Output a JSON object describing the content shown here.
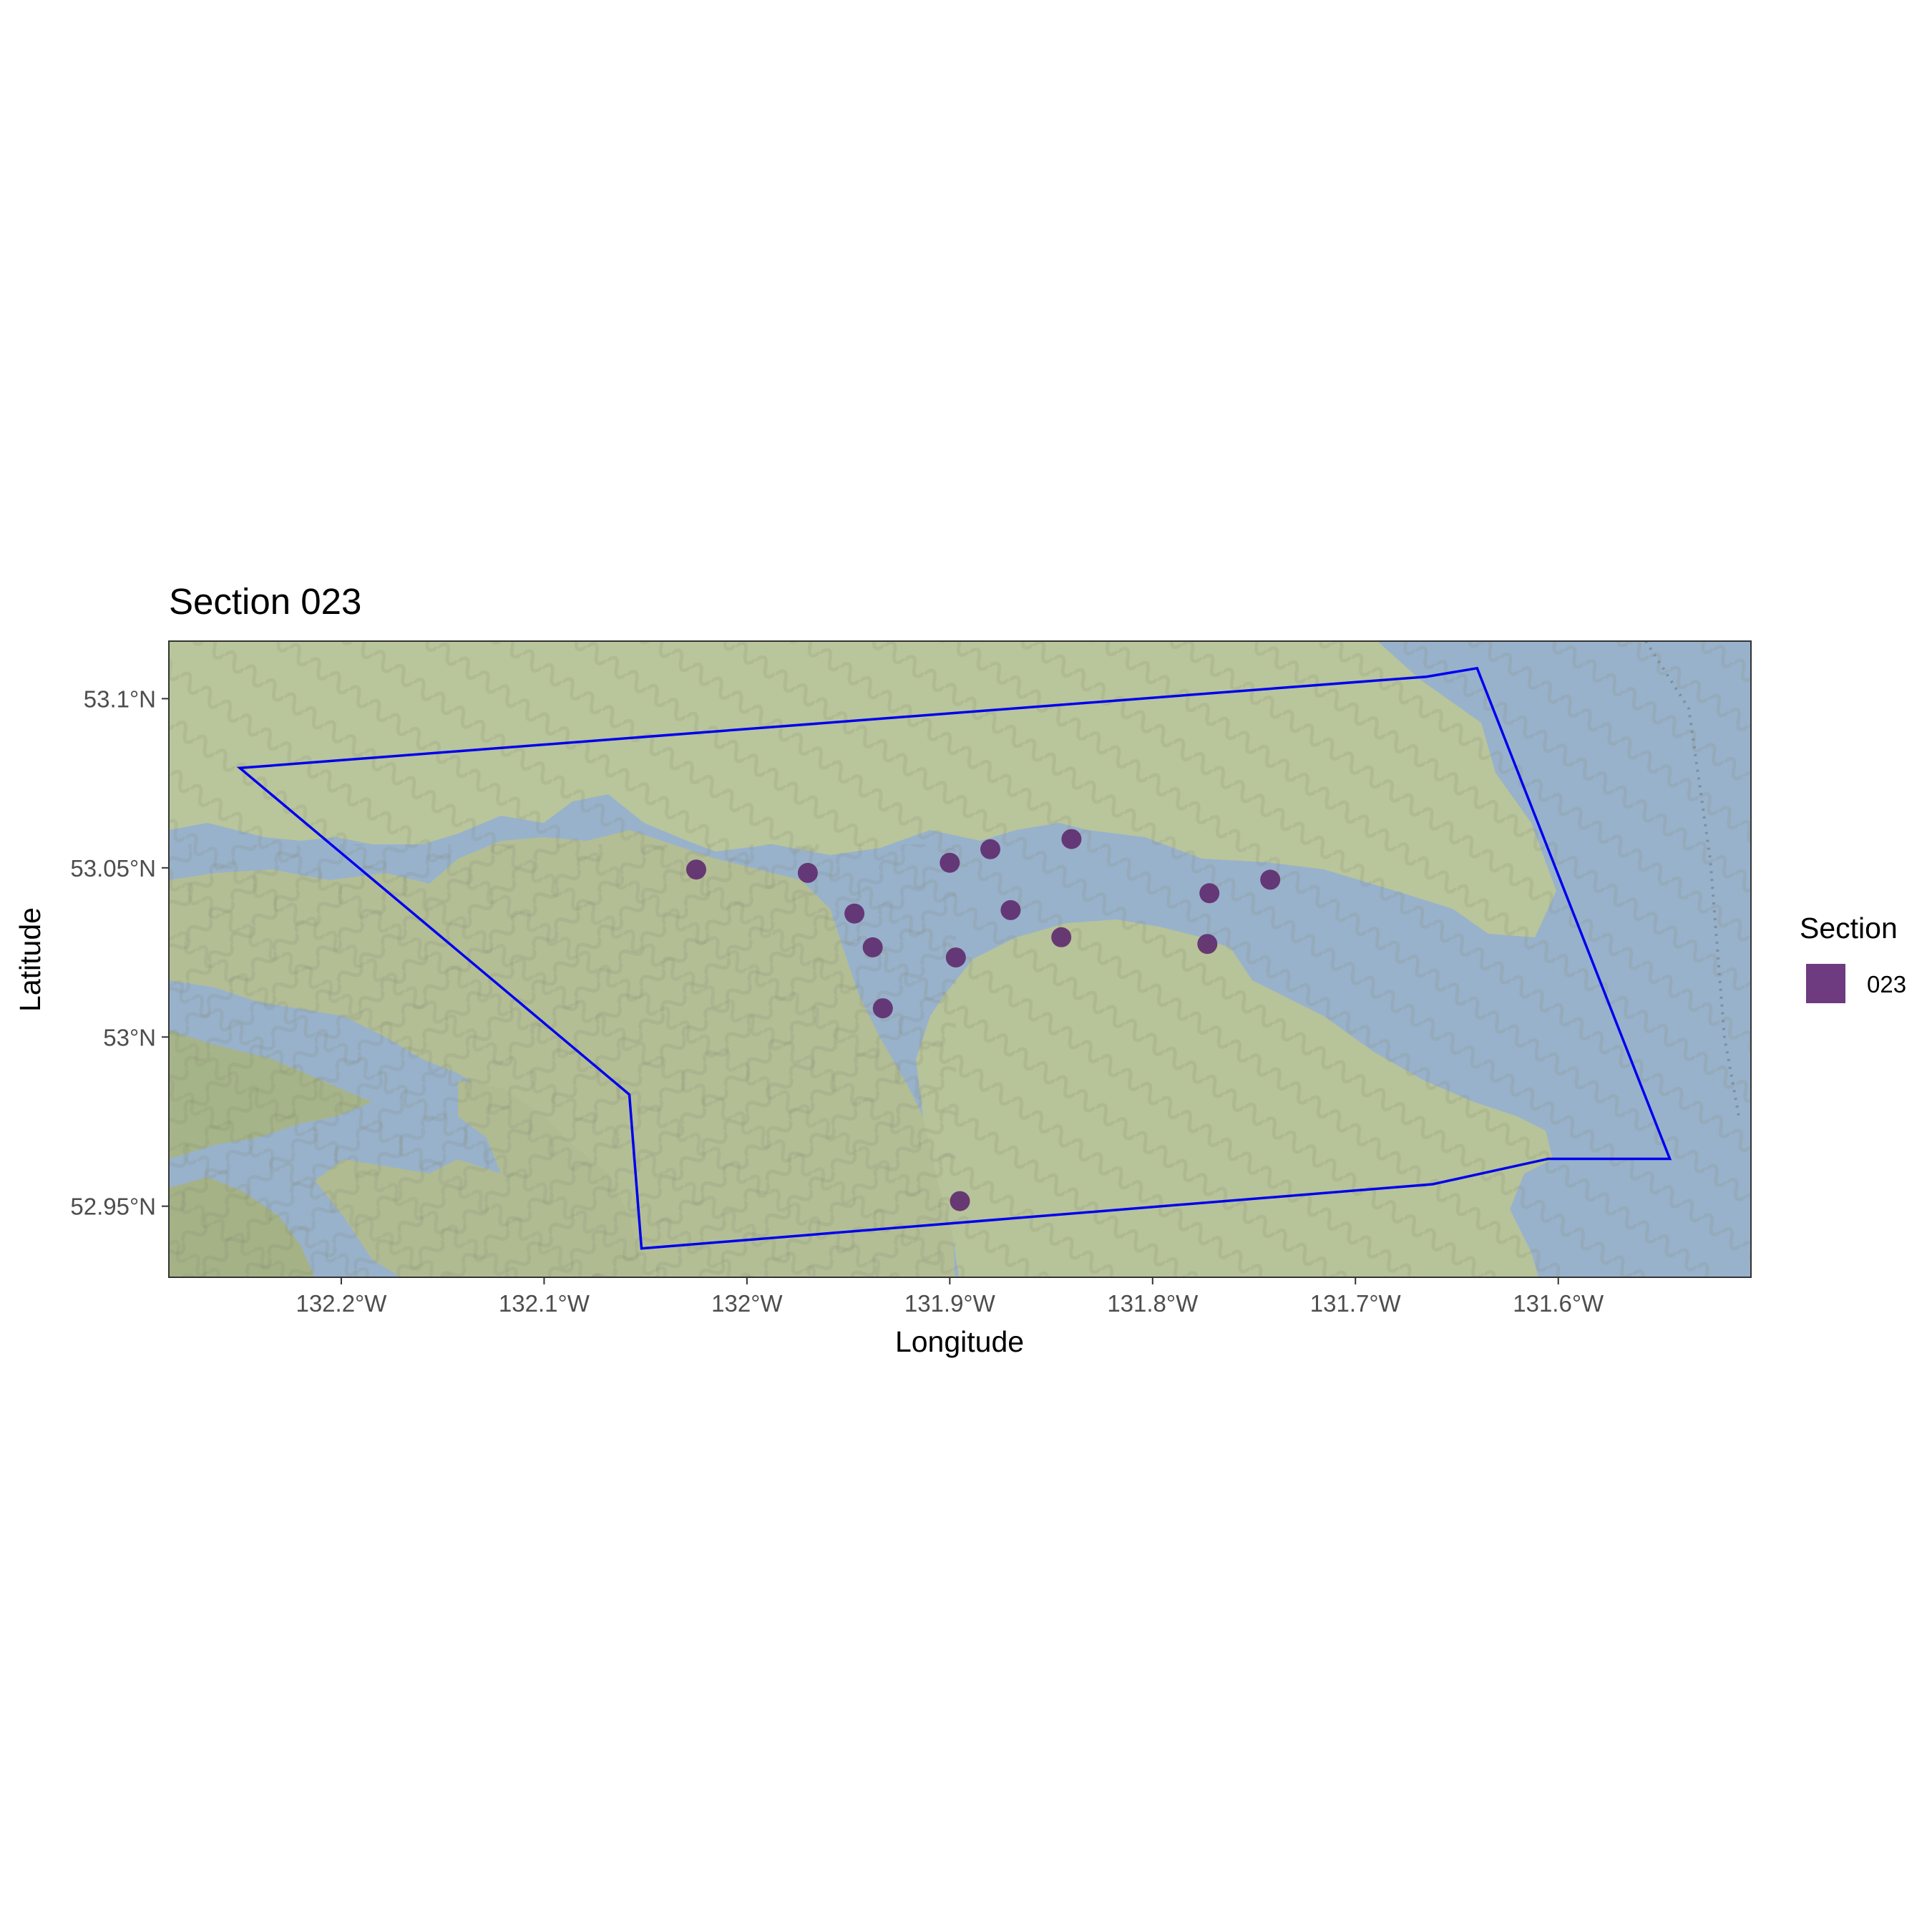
{
  "chart_data": {
    "type": "scatter",
    "title": "Section 023",
    "xlabel": "Longitude",
    "ylabel": "Latitude",
    "xlim": [
      -132.285,
      -131.505
    ],
    "ylim": [
      52.929,
      53.117
    ],
    "x_ticks": [
      {
        "value": -132.2,
        "label": "132.2°W"
      },
      {
        "value": -132.1,
        "label": "132.1°W"
      },
      {
        "value": -132.0,
        "label": "132°W"
      },
      {
        "value": -131.9,
        "label": "131.9°W"
      },
      {
        "value": -131.8,
        "label": "131.8°W"
      },
      {
        "value": -131.7,
        "label": "131.7°W"
      },
      {
        "value": -131.6,
        "label": "131.6°W"
      }
    ],
    "y_ticks": [
      {
        "value": 52.95,
        "label": "52.95°N"
      },
      {
        "value": 53.0,
        "label": "53°N"
      },
      {
        "value": 53.05,
        "label": "53.05°N"
      },
      {
        "value": 53.1,
        "label": "53.1°N"
      }
    ],
    "legend": {
      "title": "Section",
      "position": "right",
      "entries": [
        {
          "label": "023",
          "color": "#6e3a80"
        }
      ]
    },
    "colors": {
      "point": "#5e2a6e",
      "boundary": "#0000ee",
      "water": "#98b2cc",
      "land": "#b8c49a",
      "frame": "#333333"
    },
    "series": [
      {
        "name": "023",
        "points": [
          {
            "lon": -132.025,
            "lat": 53.0495
          },
          {
            "lon": -131.97,
            "lat": 53.0485
          },
          {
            "lon": -131.947,
            "lat": 53.0365
          },
          {
            "lon": -131.938,
            "lat": 53.0265
          },
          {
            "lon": -131.933,
            "lat": 53.0085
          },
          {
            "lon": -131.9,
            "lat": 53.0515
          },
          {
            "lon": -131.88,
            "lat": 53.0555
          },
          {
            "lon": -131.84,
            "lat": 53.0585
          },
          {
            "lon": -131.87,
            "lat": 53.0375
          },
          {
            "lon": -131.897,
            "lat": 53.0235
          },
          {
            "lon": -131.845,
            "lat": 53.0295
          },
          {
            "lon": -131.772,
            "lat": 53.0425
          },
          {
            "lon": -131.773,
            "lat": 53.0275
          },
          {
            "lon": -131.742,
            "lat": 53.0465
          },
          {
            "lon": -131.895,
            "lat": 52.9515
          }
        ]
      }
    ],
    "boundary_polygon": [
      [
        -132.25,
        53.0795
      ],
      [
        -131.665,
        53.1065
      ],
      [
        -131.64,
        53.109
      ],
      [
        -131.545,
        52.964
      ],
      [
        -131.605,
        52.964
      ],
      [
        -131.662,
        52.9565
      ],
      [
        -132.052,
        52.9375
      ],
      [
        -132.058,
        52.983
      ]
    ]
  }
}
